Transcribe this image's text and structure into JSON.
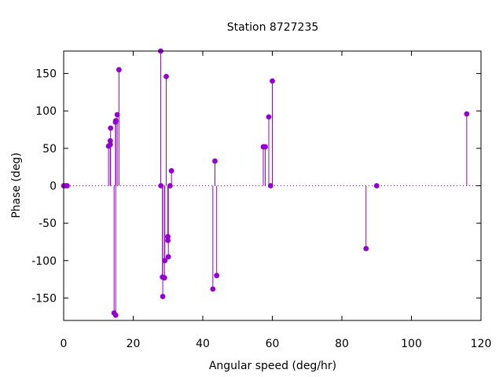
{
  "chart_data": {
    "type": "stem",
    "title": "Station 8727235",
    "xlabel": "Angular speed (deg/hr)",
    "ylabel": "Phase (deg)",
    "xlim": [
      0,
      120
    ],
    "ylim": [
      -180,
      180
    ],
    "xticks": [
      0,
      20,
      40,
      60,
      80,
      100,
      120
    ],
    "yticks": [
      -150,
      -100,
      -50,
      0,
      50,
      100,
      150
    ],
    "grid": false,
    "zero_line": "dotted",
    "color": "#9400d3",
    "points": [
      {
        "x": 0.0,
        "y": 0
      },
      {
        "x": 0.5,
        "y": 0
      },
      {
        "x": 1.0,
        "y": 0
      },
      {
        "x": 12.9,
        "y": 53
      },
      {
        "x": 13.4,
        "y": 60
      },
      {
        "x": 13.4,
        "y": 55
      },
      {
        "x": 13.5,
        "y": 77
      },
      {
        "x": 14.5,
        "y": -170
      },
      {
        "x": 14.9,
        "y": 85
      },
      {
        "x": 14.96,
        "y": -173
      },
      {
        "x": 15.0,
        "y": 87
      },
      {
        "x": 15.4,
        "y": 95
      },
      {
        "x": 15.9,
        "y": 155
      },
      {
        "x": 27.9,
        "y": 180
      },
      {
        "x": 27.97,
        "y": 0
      },
      {
        "x": 28.4,
        "y": -122
      },
      {
        "x": 28.5,
        "y": -148
      },
      {
        "x": 29.0,
        "y": -123
      },
      {
        "x": 29.1,
        "y": -100
      },
      {
        "x": 29.5,
        "y": 146
      },
      {
        "x": 29.96,
        "y": -68
      },
      {
        "x": 29.98,
        "y": -73
      },
      {
        "x": 30.1,
        "y": -95
      },
      {
        "x": 30.6,
        "y": 0
      },
      {
        "x": 31.0,
        "y": 20
      },
      {
        "x": 42.9,
        "y": -138
      },
      {
        "x": 43.5,
        "y": 33
      },
      {
        "x": 44.0,
        "y": -120
      },
      {
        "x": 57.4,
        "y": 52
      },
      {
        "x": 57.97,
        "y": 52
      },
      {
        "x": 58.98,
        "y": 92
      },
      {
        "x": 59.5,
        "y": 0
      },
      {
        "x": 60.0,
        "y": 140
      },
      {
        "x": 86.95,
        "y": -84
      },
      {
        "x": 90.0,
        "y": 0
      },
      {
        "x": 115.9,
        "y": 96
      }
    ]
  }
}
